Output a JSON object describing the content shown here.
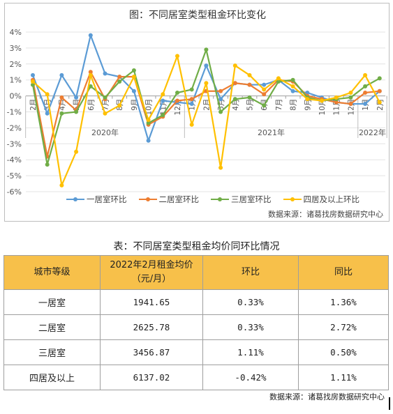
{
  "chart_data": {
    "type": "line",
    "title": "图：不同居室类型租金环比变化",
    "source": "数据来源：诸葛找房数据研究中心",
    "x": [
      "2月",
      "3月",
      "4月",
      "5月",
      "6月",
      "7月",
      "8月",
      "9月",
      "10月",
      "11月",
      "12月",
      "1月",
      "2月",
      "3月",
      "4月",
      "5月",
      "6月",
      "7月",
      "8月",
      "9月",
      "10月",
      "11月",
      "12月",
      "1月",
      "2月"
    ],
    "year_labels": [
      "2020年",
      "2021年",
      "2022年"
    ],
    "y_ticks": [
      "-6%",
      "-5%",
      "-4%",
      "-3%",
      "-2%",
      "-1%",
      "0%",
      "1%",
      "2%",
      "3%",
      "4%"
    ],
    "ylim": [
      -6,
      4
    ],
    "series": [
      {
        "name": "一居室环比",
        "color": "#5b9bd5",
        "values": [
          1.3,
          -1.1,
          1.3,
          -0.1,
          3.8,
          1.4,
          1.2,
          0.3,
          -2.8,
          -0.3,
          -0.4,
          -0.5,
          1.9,
          -0.2,
          0.8,
          0.7,
          0.7,
          1.0,
          0.3,
          0.2,
          -0.1,
          -0.4,
          -0.5,
          -0.5,
          0.3
        ]
      },
      {
        "name": "二居室环比",
        "color": "#ed7d31",
        "values": [
          1.0,
          -3.8,
          -0.1,
          -0.9,
          1.5,
          -0.2,
          1.2,
          1.2,
          -1.8,
          -1.3,
          -0.3,
          -0.2,
          0.3,
          0.3,
          0.8,
          0.7,
          0.1,
          1.0,
          0.9,
          0.0,
          -0.2,
          -0.4,
          -0.5,
          0.2,
          0.3
        ]
      },
      {
        "name": "三居室环比",
        "color": "#70ad47",
        "values": [
          0.7,
          -4.3,
          -1.1,
          -1.0,
          0.6,
          -0.1,
          0.9,
          1.6,
          -1.7,
          -1.2,
          0.2,
          0.4,
          2.9,
          -1.0,
          -0.2,
          -0.1,
          -0.6,
          0.9,
          1.0,
          -0.1,
          -0.3,
          -0.2,
          -0.1,
          0.6,
          1.1
        ]
      },
      {
        "name": "四居及以上环比",
        "color": "#ffc000",
        "values": [
          0.9,
          0.1,
          -5.6,
          -3.5,
          1.3,
          -1.1,
          -0.6,
          1.2,
          -1.5,
          0.1,
          2.5,
          -1.8,
          0.8,
          -4.5,
          1.9,
          1.3,
          0.4,
          1.1,
          0.6,
          -0.2,
          -0.3,
          -0.1,
          0.2,
          1.3,
          -0.4
        ]
      }
    ]
  },
  "table": {
    "title": "表：不同居室类型租金均价同环比情况",
    "headers": {
      "tier": "城市等级",
      "price_line1": "2022年2月租金均价",
      "price_line2": "（元/月）",
      "mom": "环比",
      "yoy": "同比"
    },
    "rows": [
      {
        "type": "一居室",
        "price": "1941.65",
        "mom": "0.33%",
        "yoy": "1.36%"
      },
      {
        "type": "二居室",
        "price": "2625.78",
        "mom": "0.33%",
        "yoy": "2.72%"
      },
      {
        "type": "三居室",
        "price": "3456.87",
        "mom": "1.11%",
        "yoy": "0.50%"
      },
      {
        "type": "四居及以上",
        "price": "6137.02",
        "mom": "-0.42%",
        "yoy": "1.11%"
      }
    ],
    "source": "数据来源：诸葛找房数据研究中心"
  }
}
